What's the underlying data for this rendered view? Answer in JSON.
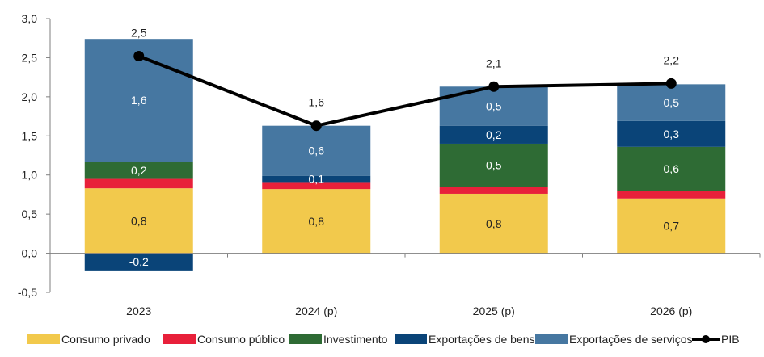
{
  "chart_data": {
    "type": "bar",
    "stacked": true,
    "categories": [
      "2023",
      "2024 (p)",
      "2025 (p)",
      "2026 (p)"
    ],
    "ylim": [
      -0.5,
      3.0
    ],
    "yticks": [
      "3,0",
      "2,5",
      "2,0",
      "1,5",
      "1,0",
      "0,5",
      "0,0",
      "-0,5"
    ],
    "ytick_values": [
      3.0,
      2.5,
      2.0,
      1.5,
      1.0,
      0.5,
      0.0,
      -0.5
    ],
    "grid": false,
    "legend_position": "bottom",
    "series": [
      {
        "name": "Consumo privado",
        "color": "#f2c94c",
        "values": [
          0.83,
          0.82,
          0.76,
          0.7
        ],
        "labels": [
          "0,8",
          "0,8",
          "0,8",
          "0,7"
        ],
        "label_color": "#222222"
      },
      {
        "name": "Consumo público",
        "color": "#e8203a",
        "values": [
          0.12,
          0.09,
          0.09,
          0.1
        ],
        "labels": [
          "",
          "",
          "",
          ""
        ],
        "label_color": "#ffffff"
      },
      {
        "name": "Investimento",
        "color": "#2e6b34",
        "values": [
          0.22,
          0.0,
          0.55,
          0.56
        ],
        "labels": [
          "0,2",
          "",
          "0,5",
          "0,6"
        ],
        "label_color": "#ffffff"
      },
      {
        "name": "Exportações de bens",
        "color": "#0a4478",
        "values": [
          -0.22,
          0.08,
          0.23,
          0.33
        ],
        "labels": [
          "-0,2",
          "0,1",
          "0,2",
          "0,3"
        ],
        "label_color": "#ffffff"
      },
      {
        "name": "Exportações de serviços",
        "color": "#4677a1",
        "values": [
          1.57,
          0.64,
          0.5,
          0.47
        ],
        "labels": [
          "1,6",
          "0,6",
          "0,5",
          "0,5"
        ],
        "label_color": "#ffffff"
      }
    ],
    "line_series": {
      "name": "PIB",
      "color": "#000000",
      "values": [
        2.52,
        1.63,
        2.13,
        2.17
      ],
      "labels": [
        "2,5",
        "1,6",
        "2,1",
        "2,2"
      ]
    }
  }
}
